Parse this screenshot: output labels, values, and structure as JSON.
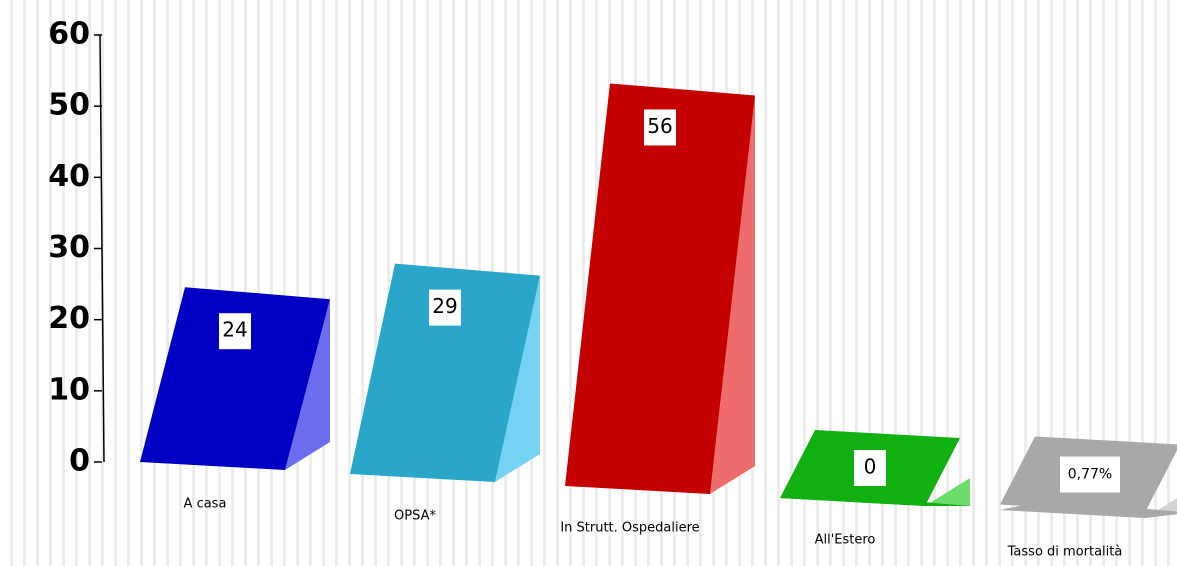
{
  "chart_data": {
    "type": "bar3d",
    "categories": [
      "A casa",
      "OPSA*",
      "In Strutt. Ospedaliere",
      "All'Estero",
      "Tasso di mortalità"
    ],
    "values": [
      24,
      29,
      56,
      0,
      0.77
    ],
    "value_labels": [
      "24",
      "29",
      "56",
      "0",
      "0,77%"
    ],
    "colors": [
      "#0000c4",
      "#2aa6c8",
      "#c40000",
      "#10b010",
      "#a8a8a8"
    ],
    "ylim": [
      0,
      60
    ],
    "yticks": [
      0,
      10,
      20,
      30,
      40,
      50,
      60
    ],
    "grid": false
  }
}
